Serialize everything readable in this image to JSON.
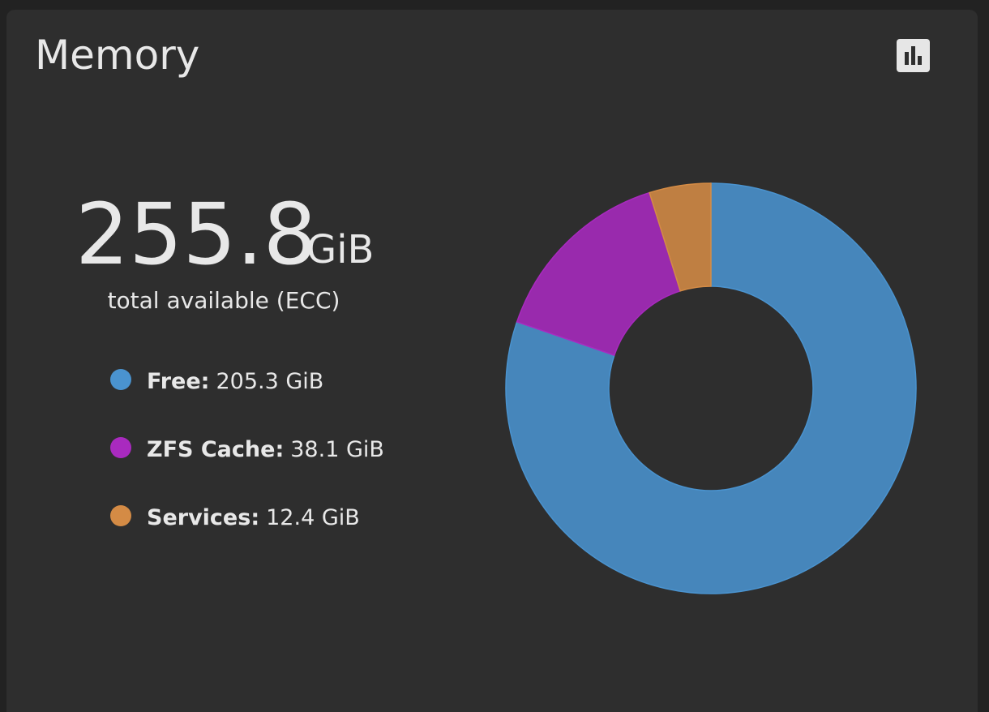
{
  "widget": {
    "title": "Memory",
    "total": "255.8",
    "unit": "GiB",
    "caption": "total available (ECC)"
  },
  "chart_data": {
    "type": "donut",
    "categories": [
      "Free:",
      "ZFS Cache:",
      "Services:"
    ],
    "values": [
      205.3,
      38.1,
      12.4
    ],
    "value_labels": [
      "205.3 GiB",
      "38.1 GiB",
      "12.4 GiB"
    ],
    "colors": [
      "#4a93cf",
      "#a92abf",
      "#d48b45"
    ]
  }
}
